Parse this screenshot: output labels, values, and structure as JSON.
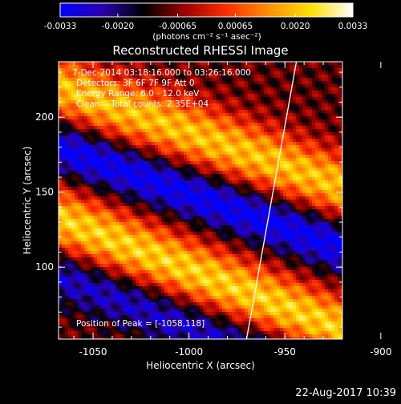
{
  "colorbar": {
    "ticks": [
      "-0.0033",
      "-0.0020",
      "-0.00065",
      "0.00065",
      "0.0020",
      "0.0033"
    ],
    "tick_values": [
      -0.0033,
      -0.002,
      -0.00065,
      0.00065,
      0.002,
      0.0033
    ],
    "range": [
      -0.0033,
      0.0033
    ],
    "unit_label": "(photons cm⁻² s⁻¹ asec⁻²)",
    "colormap": [
      "#0000ff",
      "#2a00b0",
      "#000000",
      "#a00000",
      "#ff3000",
      "#ff9000",
      "#ffe000",
      "#ffffff"
    ]
  },
  "chart_data": {
    "type": "heatmap",
    "title": "Reconstructed RHESSI Image",
    "xlabel": "Heliocentric X (arcsec)",
    "ylabel": "Heliocentric Y (arcsec)",
    "xlim": [
      -1068,
      -920
    ],
    "ylim": [
      52,
      237
    ],
    "xticks": [
      -1050,
      -1000,
      -950,
      -900
    ],
    "yticks": [
      100,
      150,
      200
    ],
    "xtick_labels": [
      "-1050",
      "-1000",
      "-950",
      "-900"
    ],
    "ytick_labels": [
      "100",
      "150",
      "200"
    ],
    "colormap_range": [
      -0.0033,
      0.0033
    ],
    "bands": [
      {
        "kind": "bright",
        "y_at_xmin": 220,
        "slope": -0.45,
        "width": 22,
        "peak": 0.0029
      },
      {
        "kind": "bright",
        "y_at_xmin": 132,
        "slope": -0.5,
        "width": 22,
        "peak": 0.0031
      },
      {
        "kind": "dark",
        "y_at_xmin": 180,
        "slope": -0.45,
        "width": 18,
        "peak": -0.0024
      },
      {
        "kind": "dark",
        "y_at_xmin": 95,
        "slope": -0.5,
        "width": 18,
        "peak": -0.0018
      }
    ],
    "limb_line": [
      [
        -970,
        52
      ],
      [
        -944,
        237
      ]
    ],
    "peak_position": [
      -1058,
      118
    ]
  },
  "annotations": {
    "lines": [
      "7-Dec-2014 03:18:16.000 to 03:26:16.000",
      "Detectors: 3F 6F 7F 9F Att 0",
      "Energy Range: 6.0 - 12.0 keV",
      "Clean    Total counts: 2.35E+04"
    ],
    "peak_label": "Position of Peak = [-1058,118]"
  },
  "footer": {
    "timestamp": "22-Aug-2017 10:39"
  }
}
